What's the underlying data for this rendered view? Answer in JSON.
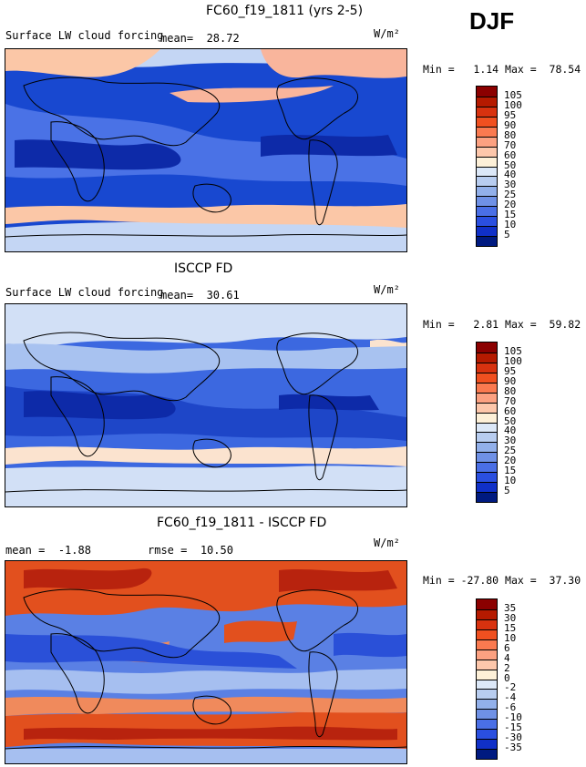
{
  "season": "DJF",
  "units_label": "W/m²",
  "panels": [
    {
      "title": "FC60_f19_1811 (yrs 2-5)",
      "subtitle": "Surface LW cloud forcing",
      "mean_label": "mean=",
      "mean_value": "28.72",
      "min_label": "Min =",
      "min_value": "1.14",
      "max_label": "Max =",
      "max_value": "78.54",
      "colorbar": {
        "labels": [
          "105",
          "100",
          "95",
          "90",
          "80",
          "70",
          "60",
          "50",
          "40",
          "30",
          "25",
          "20",
          "15",
          "10",
          "5"
        ],
        "colors": [
          "#8b0000",
          "#b51a00",
          "#d8320f",
          "#f05020",
          "#fa7a50",
          "#fca181",
          "#fdc7ab",
          "#fdf0d8",
          "#dce8f8",
          "#b8cdf0",
          "#92b0ea",
          "#6f91e6",
          "#4a6fe6",
          "#2a4fe0",
          "#1030c8",
          "#001a80"
        ]
      },
      "field": {
        "base": "#1848d0",
        "zones": [
          {
            "fill": "#c4d6f4",
            "level": "40"
          },
          {
            "fill": "#fbc7a7",
            "level": "70"
          },
          {
            "fill": "#f9b59c",
            "level": "80"
          },
          {
            "fill": "#4a72e6",
            "level": "20"
          },
          {
            "fill": "#0d2aa8",
            "level": "10"
          }
        ]
      }
    },
    {
      "title": "ISCCP FD",
      "subtitle": "Surface LW cloud forcing",
      "mean_label": "mean=",
      "mean_value": "30.61",
      "min_label": "Min =",
      "min_value": "2.81",
      "max_label": "Max =",
      "max_value": "59.82",
      "colorbar": {
        "labels": [
          "105",
          "100",
          "95",
          "90",
          "80",
          "70",
          "60",
          "50",
          "40",
          "30",
          "25",
          "20",
          "15",
          "10",
          "5"
        ],
        "colors": [
          "#8b0000",
          "#b51a00",
          "#d8320f",
          "#f05020",
          "#fa7a50",
          "#fca181",
          "#fdc7ab",
          "#fdf0d8",
          "#dce8f8",
          "#b8cdf0",
          "#92b0ea",
          "#6f91e6",
          "#4a6fe6",
          "#2a4fe0",
          "#1030c8",
          "#001a80"
        ]
      },
      "field": {
        "base": "#3c68e0",
        "zones": [
          {
            "fill": "#d2e0f6",
            "level": "40"
          },
          {
            "fill": "#fbe3cf",
            "level": "60"
          },
          {
            "fill": "#a8c2f0",
            "level": "30"
          },
          {
            "fill": "#1e46c8",
            "level": "15"
          },
          {
            "fill": "#0d2aa8",
            "level": "10"
          }
        ]
      }
    },
    {
      "title": "FC60_f19_1811 - ISCCP FD",
      "mean_label": "mean =",
      "mean_value": "-1.88",
      "rmse_label": "rmse =",
      "rmse_value": "10.50",
      "min_label": "Min =",
      "min_value": "-27.80",
      "max_label": "Max =",
      "max_value": "37.30",
      "colorbar": {
        "labels": [
          "35",
          "30",
          "15",
          "10",
          "6",
          "4",
          "2",
          "0",
          "-2",
          "-4",
          "-6",
          "-10",
          "-15",
          "-30",
          "-35"
        ],
        "colors": [
          "#8b0000",
          "#b51a00",
          "#d8320f",
          "#f05020",
          "#fa7a50",
          "#fca181",
          "#fdc7ab",
          "#fdf0d8",
          "#dce8f8",
          "#b8cdf0",
          "#92b0ea",
          "#6f91e6",
          "#4a6fe6",
          "#2a4fe0",
          "#1030c8",
          "#001a80"
        ]
      },
      "field": {
        "base": "#5a80e4",
        "zones": [
          {
            "fill": "#e2501e",
            "level": "15"
          },
          {
            "fill": "#f08a5c",
            "level": "6"
          },
          {
            "fill": "#a6bff0",
            "level": "-4"
          },
          {
            "fill": "#2a50d8",
            "level": "-15"
          },
          {
            "fill": "#b8230e",
            "level": "30"
          }
        ]
      }
    }
  ]
}
